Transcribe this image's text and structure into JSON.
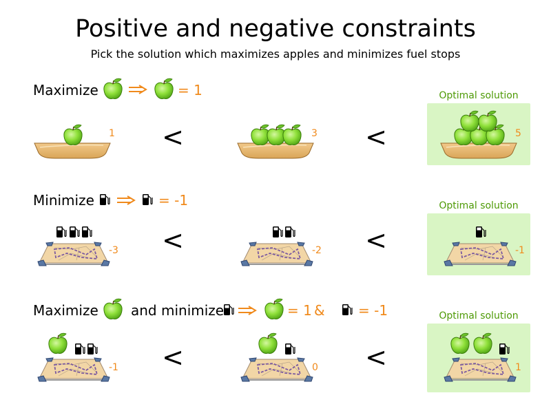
{
  "title": "Positive and negative constraints",
  "subtitle": "Pick the solution which maximizes apples and minimizes fuel stops",
  "colors": {
    "accent": "#f08a1c",
    "optimal_bg": "#d9f5c4",
    "optimal_text": "#4e9a06"
  },
  "icons": [
    "apple-icon",
    "fuel-pump-icon",
    "fruit-bowl-icon",
    "map-icon",
    "double-arrow-icon"
  ],
  "rows": [
    {
      "label": "Maximize",
      "score_text": "= 1",
      "less_than": "<",
      "optimal_label": "Optimal solution",
      "scores": [
        "1",
        "3",
        "5"
      ]
    },
    {
      "label": "Minimize",
      "score_text": "= -1",
      "less_than": "<",
      "optimal_label": "Optimal solution",
      "scores": [
        "-3",
        "-2",
        "-1"
      ]
    },
    {
      "label": "Maximize",
      "and_label": "and minimize",
      "apple_score_text": "= 1",
      "amp": "&",
      "fuel_score_text": "= -1",
      "less_than": "<",
      "optimal_label": "Optimal solution",
      "scores": [
        "-1",
        "0",
        "1"
      ]
    }
  ]
}
